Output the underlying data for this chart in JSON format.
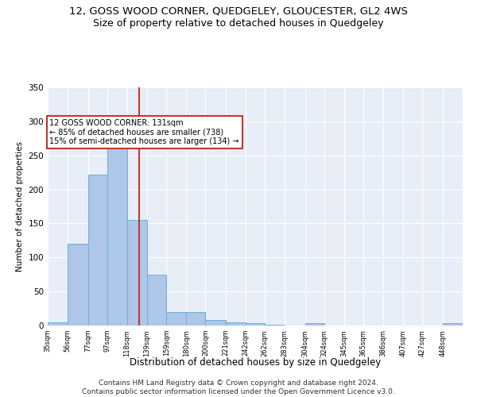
{
  "title1": "12, GOSS WOOD CORNER, QUEDGELEY, GLOUCESTER, GL2 4WS",
  "title2": "Size of property relative to detached houses in Quedgeley",
  "xlabel": "Distribution of detached houses by size in Quedgeley",
  "ylabel": "Number of detached properties",
  "bins": [
    35,
    56,
    77,
    97,
    118,
    139,
    159,
    180,
    200,
    221,
    242,
    262,
    283,
    304,
    324,
    345,
    365,
    386,
    407,
    427,
    448,
    469
  ],
  "bin_labels": [
    "35sqm",
    "56sqm",
    "77sqm",
    "97sqm",
    "118sqm",
    "139sqm",
    "159sqm",
    "180sqm",
    "200sqm",
    "221sqm",
    "242sqm",
    "262sqm",
    "283sqm",
    "304sqm",
    "324sqm",
    "345sqm",
    "365sqm",
    "386sqm",
    "407sqm",
    "427sqm",
    "448sqm"
  ],
  "counts": [
    5,
    120,
    222,
    260,
    155,
    75,
    20,
    20,
    8,
    5,
    3,
    1,
    0,
    3,
    0,
    0,
    0,
    0,
    0,
    0,
    3
  ],
  "bar_color": "#aec6e8",
  "bar_edge_color": "#6aaed6",
  "vline_x": 131,
  "vline_color": "#c0392b",
  "annotation_text": "12 GOSS WOOD CORNER: 131sqm\n← 85% of detached houses are smaller (738)\n15% of semi-detached houses are larger (134) →",
  "annotation_box_color": "white",
  "annotation_box_edge": "#c0392b",
  "ylim": [
    0,
    350
  ],
  "yticks": [
    0,
    50,
    100,
    150,
    200,
    250,
    300,
    350
  ],
  "bg_color": "#e8eef7",
  "footer": "Contains HM Land Registry data © Crown copyright and database right 2024.\nContains public sector information licensed under the Open Government Licence v3.0.",
  "title1_fontsize": 9.5,
  "title2_fontsize": 9,
  "xlabel_fontsize": 8.5,
  "ylabel_fontsize": 7.5,
  "footer_fontsize": 6.5
}
